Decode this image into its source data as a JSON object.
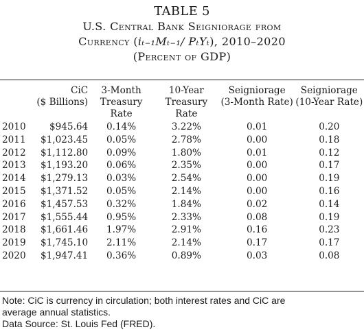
{
  "table_label": "TABLE 5",
  "title_line1": "U.S. Central Bank Seigniorage from",
  "title_line2_prefix": "Currency (",
  "title_line2_math": "iₜ₋₁Mₜ₋₁/ PₜYₜ",
  "title_line2_suffix": "), 2010–2020",
  "title_line3": "(Percent of GDP)",
  "columns": [
    {
      "line1": "",
      "line2": ""
    },
    {
      "line1": "CiC",
      "line2": "($ Billions)"
    },
    {
      "line1": "3-Month",
      "line2": "Treasury Rate"
    },
    {
      "line1": "10-Year",
      "line2": "Treasury Rate"
    },
    {
      "line1": "Seigniorage",
      "line2": "(3-Month Rate)"
    },
    {
      "line1": "Seigniorage",
      "line2": "(10-Year Rate)"
    }
  ],
  "rows": [
    [
      "2010",
      "$945.64",
      "0.14%",
      "3.22%",
      "0.01",
      "0.20"
    ],
    [
      "2011",
      "$1,023.45",
      "0.05%",
      "2.78%",
      "0.00",
      "0.18"
    ],
    [
      "2012",
      "$1,112.80",
      "0.09%",
      "1.80%",
      "0.01",
      "0.12"
    ],
    [
      "2013",
      "$1,193.20",
      "0.06%",
      "2.35%",
      "0.00",
      "0.17"
    ],
    [
      "2014",
      "$1,279.13",
      "0.03%",
      "2.54%",
      "0.00",
      "0.19"
    ],
    [
      "2015",
      "$1,371.52",
      "0.05%",
      "2.14%",
      "0.00",
      "0.16"
    ],
    [
      "2016",
      "$1,457.53",
      "0.32%",
      "1.84%",
      "0.02",
      "0.14"
    ],
    [
      "2017",
      "$1,555.44",
      "0.95%",
      "2.33%",
      "0.08",
      "0.19"
    ],
    [
      "2018",
      "$1,661.46",
      "1.97%",
      "2.91%",
      "0.16",
      "0.23"
    ],
    [
      "2019",
      "$1,745.10",
      "2.11%",
      "2.14%",
      "0.17",
      "0.17"
    ],
    [
      "2020",
      "$1,947.41",
      "0.36%",
      "0.89%",
      "0.03",
      "0.08"
    ]
  ],
  "note_line1": "Note: CiC is currency in circulation; both interest rates and CiC are",
  "note_line2": "average annual statistics.",
  "source": "Data Source: St. Louis Fed (FRED)."
}
